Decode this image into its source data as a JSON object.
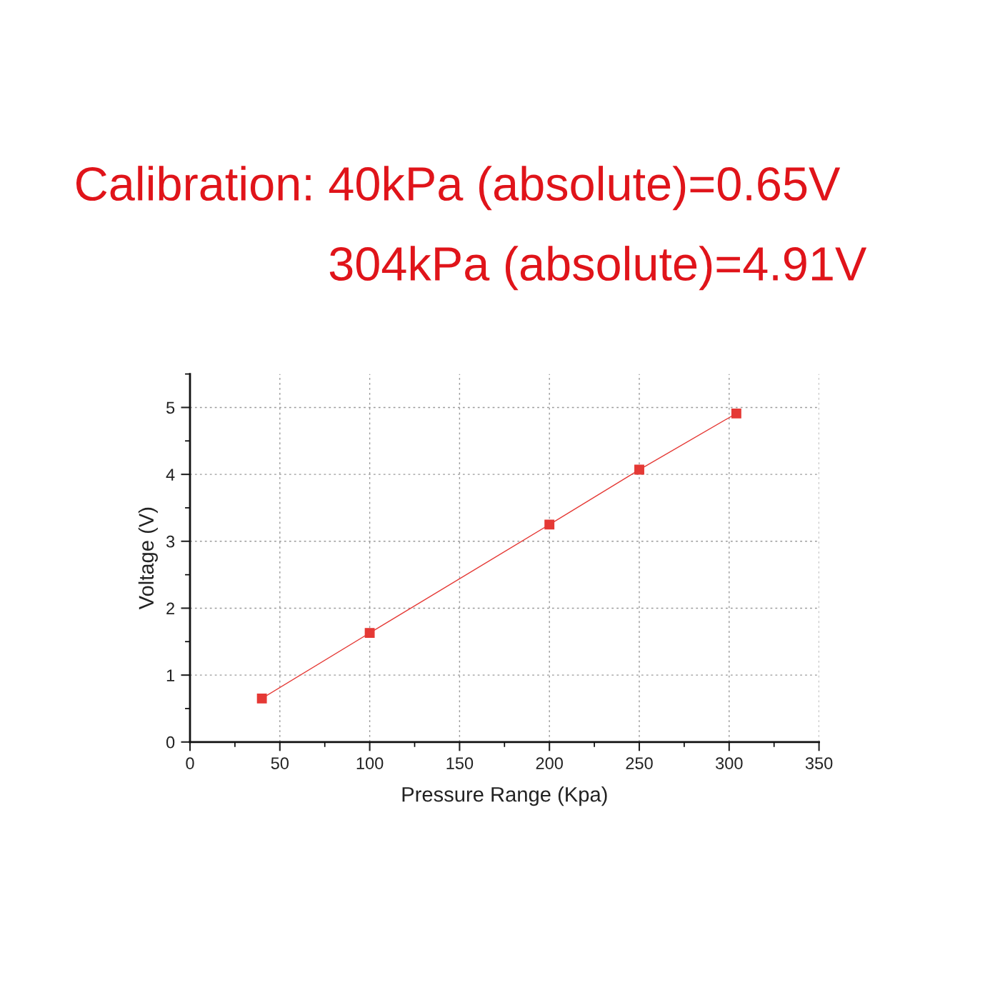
{
  "chart_data": {
    "type": "line",
    "title": "Calibration: 40kPa (absolute)=0.65V",
    "subtitle": "304kPa (absolute)=4.91V",
    "xlabel": "Pressure Range (Kpa)",
    "ylabel": "Voltage (V)",
    "x": [
      40,
      100,
      200,
      250,
      304
    ],
    "series": [
      {
        "color": "#e53935",
        "values": [
          0.65,
          1.63,
          3.25,
          4.07,
          4.91
        ]
      }
    ],
    "xlim": [
      0,
      350
    ],
    "ylim": [
      0,
      5.5
    ],
    "xticks": [
      0,
      50,
      100,
      150,
      200,
      250,
      300,
      350
    ],
    "yticks": [
      0,
      1,
      2,
      3,
      4,
      5
    ],
    "grid": true,
    "marker": "square",
    "line_style": "solid"
  }
}
